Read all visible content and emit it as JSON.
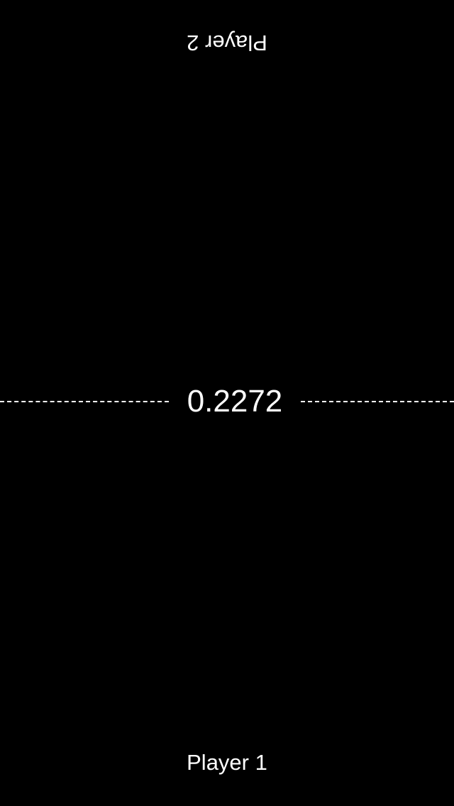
{
  "players": {
    "top_label": "Player 2",
    "bottom_label": "Player 1"
  },
  "center": {
    "value": "0.2272"
  },
  "colors": {
    "background": "#000000",
    "foreground": "#ffffff"
  }
}
